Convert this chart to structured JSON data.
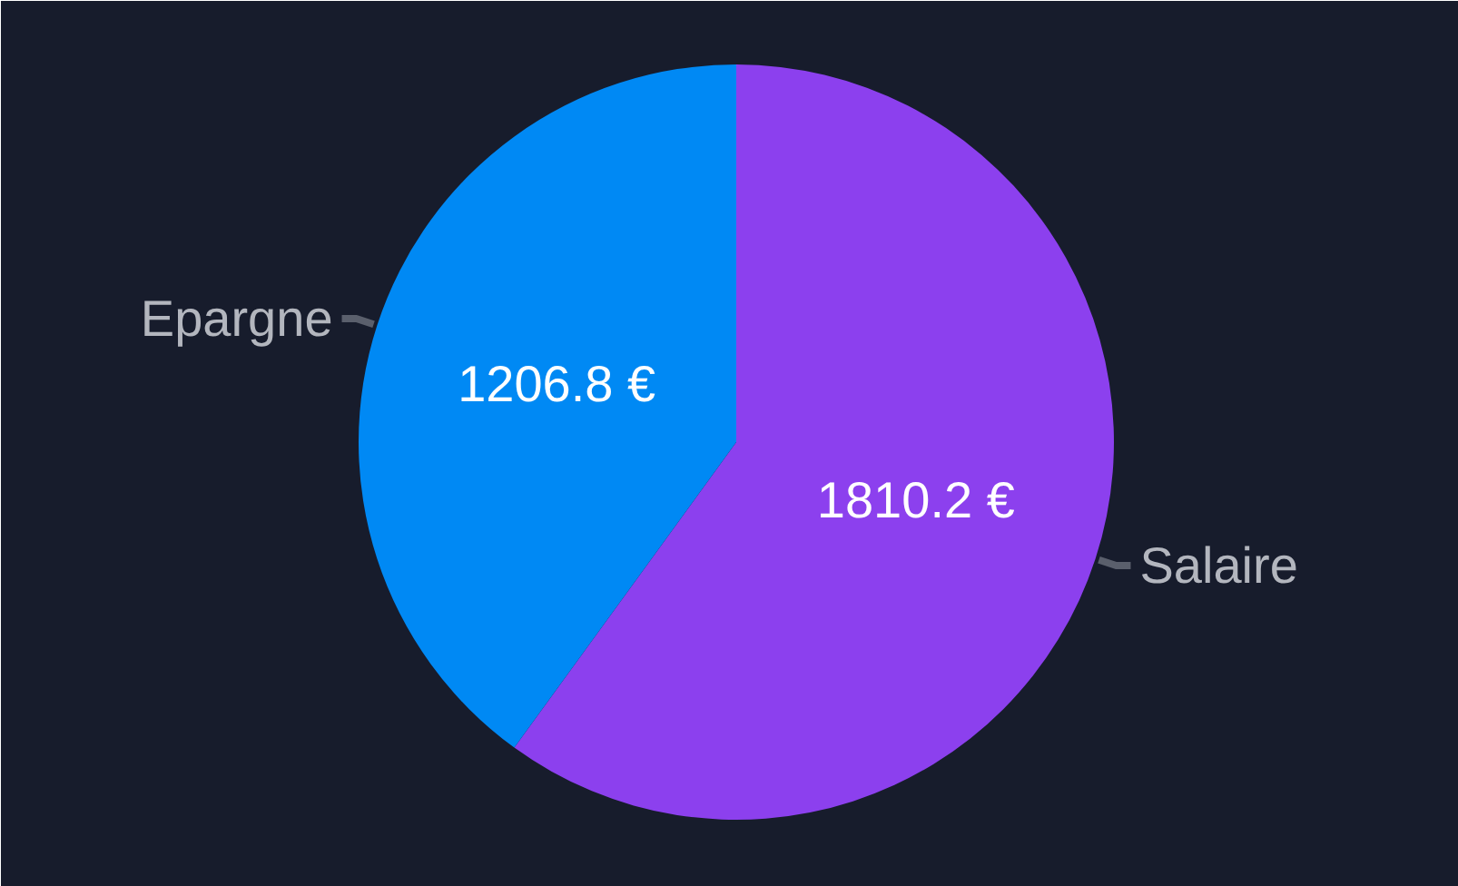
{
  "chart_data": {
    "type": "pie",
    "categories": [
      "Salaire",
      "Epargne"
    ],
    "values": [
      1810.2,
      1206.8
    ],
    "colors": [
      "#8c40ee",
      "#0089f4"
    ],
    "value_labels": [
      "1810.2 €",
      "1206.8 €"
    ]
  }
}
